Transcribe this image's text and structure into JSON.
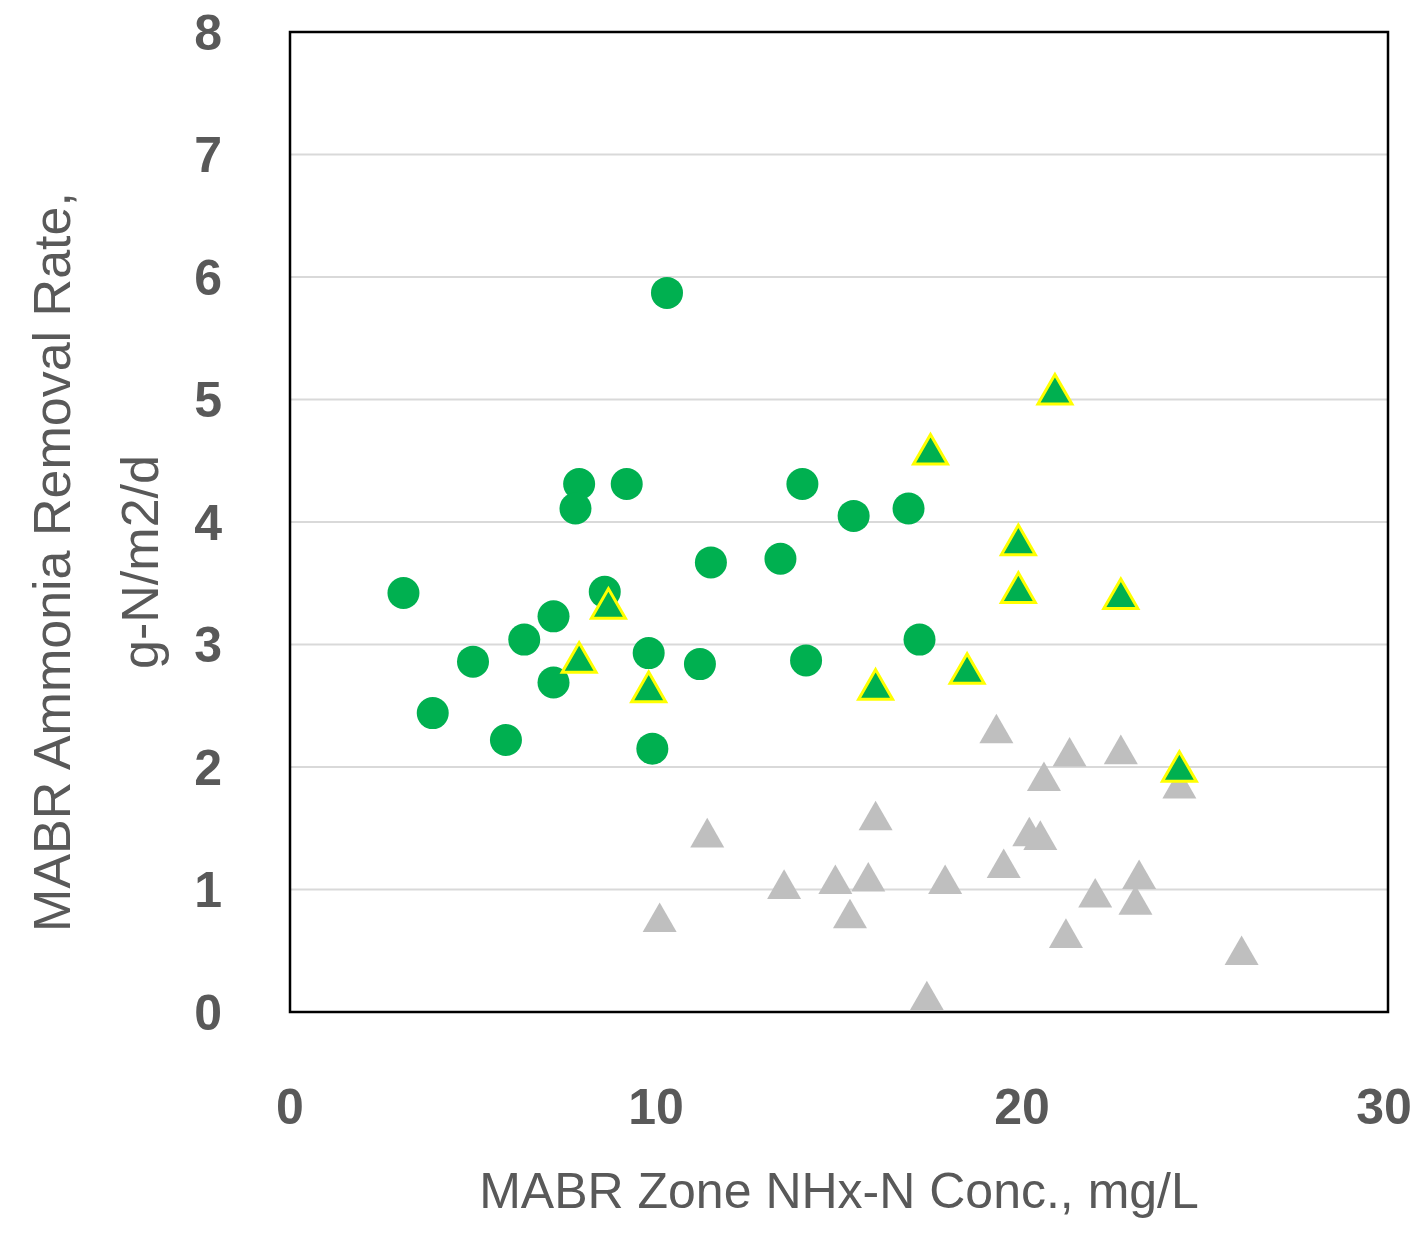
{
  "chart_data": {
    "type": "scatter",
    "xlabel": "MABR Zone NHx-N Conc., mg/L",
    "ylabel": "MABR Ammonia Removal Rate,\ng-N/m2/d",
    "xlim": [
      0,
      30
    ],
    "xticks": [
      0,
      10,
      20,
      30
    ],
    "ylim": [
      0,
      8
    ],
    "yticks": [
      0,
      1,
      2,
      3,
      4,
      5,
      6,
      7,
      8
    ],
    "grid": "y",
    "series": [
      {
        "color": "#00b050",
        "marker": "circle",
        "x": [
          3.1,
          3.9,
          5.0,
          5.9,
          6.4,
          7.2,
          7.2,
          7.9,
          7.8,
          9.2,
          8.6,
          9.8,
          9.9,
          10.3,
          11.2,
          11.5,
          13.4,
          14.0,
          14.1,
          15.4,
          16.9,
          17.2
        ],
        "values": [
          3.42,
          2.44,
          2.86,
          2.22,
          3.04,
          3.23,
          2.69,
          4.31,
          4.11,
          4.31,
          3.43,
          2.93,
          2.15,
          5.87,
          2.84,
          3.67,
          3.7,
          4.31,
          2.87,
          4.05,
          4.11,
          3.04
        ]
      },
      {
        "color": "#bfbfbf",
        "marker": "triangle",
        "x": [
          10.1,
          11.4,
          13.5,
          14.9,
          15.3,
          15.8,
          16.0,
          17.4,
          17.9,
          19.3,
          19.5,
          20.2,
          20.5,
          20.6,
          21.2,
          21.3,
          22.0,
          22.7,
          23.1,
          23.2,
          24.3,
          26.0
        ],
        "values": [
          0.75,
          1.44,
          1.02,
          1.06,
          0.78,
          1.08,
          1.58,
          0.11,
          1.06,
          2.29,
          1.19,
          1.45,
          1.42,
          1.9,
          0.62,
          2.1,
          0.95,
          2.12,
          0.89,
          1.1,
          1.84,
          0.48
        ]
      },
      {
        "color": "#00b050",
        "marker": "triangle",
        "x": [
          7.9,
          8.7,
          9.8,
          20.9,
          17.5,
          19.9,
          19.9,
          22.7,
          16.0,
          18.5,
          24.3
        ],
        "values": [
          2.87,
          3.31,
          2.63,
          5.06,
          4.57,
          3.83,
          3.44,
          3.39,
          2.65,
          2.78,
          1.98
        ]
      }
    ]
  }
}
